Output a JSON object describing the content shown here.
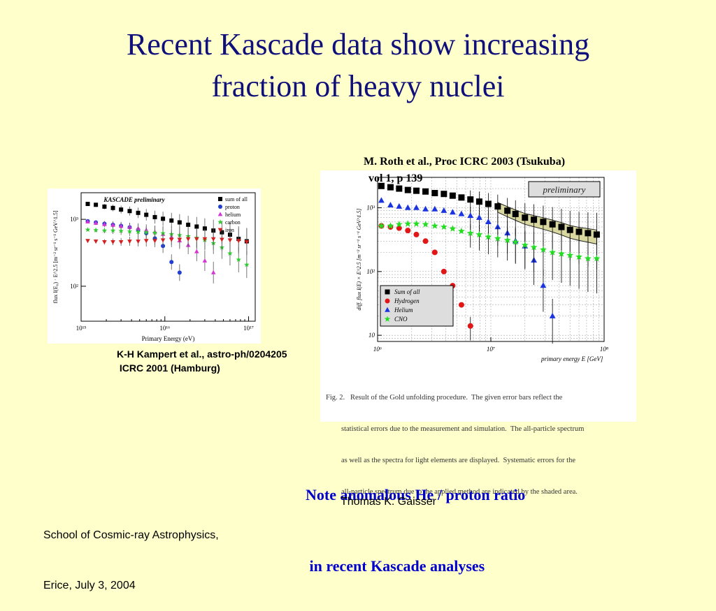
{
  "title_line1": "Recent Kascade data show increasing",
  "title_line2": "fraction of heavy nuclei",
  "left_citation_line1": "K-H Kampert et al., astro-ph/0204205",
  "left_citation_line2": " ICRC 2001 (Hamburg)",
  "right_citation_line1": "M. Roth et al., Proc ICRC 2003 (Tsukuba)",
  "right_citation_line2": "vol 1, p 139",
  "note_line1": "Note anomalous He / proton ratio",
  "note_line2": " in recent Kascade analyses",
  "footer_left_line1": "School of Cosmic-ray Astrophysics,",
  "footer_left_line2": "Erice, July 3, 2004",
  "footer_right": "Thomas K. Gaisser",
  "figure_caption": [
    "Fig. 2.   Result of the Gold unfolding procedure.  The given error bars reflect the",
    "statistical errors due to the measurement and simulation.  The all-particle spectrum",
    "as well as the spectra for light elements are displayed.  Systematic errors for the",
    "all-particle spectrum due to the applied method are indicated by the shaded area."
  ],
  "colors": {
    "title": "#10107a",
    "note": "#0000cc",
    "background": "#ffffcc",
    "all": "#000000",
    "proton": "#1f3fd0",
    "helium": "#d535d5",
    "carbon": "#2fcc2f",
    "iron": "#d42020",
    "hydrogen": "#e21616",
    "heliumR": "#1a35e0",
    "cno": "#22dd22",
    "band": "#d8d8a0"
  },
  "chart_data": [
    {
      "type": "scatter",
      "title": "KASCADE preliminary",
      "xlabel": "Primary Energy (eV)",
      "ylabel": "flux I(E₀) · E^2.5 [m⁻² sr⁻¹ s⁻¹ GeV^1.5]",
      "x_scale": "log",
      "y_scale": "log",
      "xlim": [
        1000000000000000.0,
        1.2e+17
      ],
      "ylim": [
        30,
        2500
      ],
      "xticks": [
        "10¹⁵",
        "10¹⁶",
        "10¹⁷"
      ],
      "yticks": [
        "10²",
        "10³"
      ],
      "legend_position": "top-right",
      "series": [
        {
          "name": "sum of all",
          "marker": "square",
          "x": [
            1200000000000000.0,
            1500000000000000.0,
            1900000000000000.0,
            2400000000000000.0,
            3000000000000000.0,
            3800000000000000.0,
            4800000000000000.0,
            6000000000000000.0,
            7600000000000000.0,
            9500000000000000.0,
            1.2e+16,
            1.5e+16,
            1.9e+16,
            2.4e+16,
            3e+16,
            3.8e+16,
            4.8e+16,
            6e+16,
            7.6e+16,
            9.5e+16
          ],
          "y": [
            1700,
            1650,
            1550,
            1480,
            1400,
            1330,
            1250,
            1170,
            1080,
            1020,
            960,
            900,
            830,
            780,
            730,
            680,
            640,
            590,
            510,
            470
          ]
        },
        {
          "name": "proton",
          "marker": "circle",
          "x": [
            1200000000000000.0,
            1500000000000000.0,
            1900000000000000.0,
            2400000000000000.0,
            3000000000000000.0,
            3800000000000000.0,
            4800000000000000.0,
            6000000000000000.0,
            7600000000000000.0,
            9500000000000000.0,
            1.2e+16,
            1.5e+16
          ],
          "y": [
            940,
            900,
            860,
            830,
            800,
            760,
            700,
            620,
            520,
            400,
            230,
            160
          ]
        },
        {
          "name": "helium",
          "marker": "triangle-up",
          "x": [
            1200000000000000.0,
            1500000000000000.0,
            1900000000000000.0,
            2400000000000000.0,
            3000000000000000.0,
            3800000000000000.0,
            4800000000000000.0,
            6000000000000000.0,
            7600000000000000.0,
            9500000000000000.0,
            1.2e+16,
            1.5e+16,
            1.9e+16,
            2.4e+16,
            3e+16,
            3.8e+16
          ],
          "y": [
            920,
            880,
            840,
            820,
            790,
            760,
            730,
            690,
            650,
            600,
            540,
            480,
            410,
            330,
            240,
            160
          ]
        },
        {
          "name": "carbon",
          "marker": "star",
          "x": [
            1200000000000000.0,
            1500000000000000.0,
            1900000000000000.0,
            2400000000000000.0,
            3000000000000000.0,
            3800000000000000.0,
            4800000000000000.0,
            6000000000000000.0,
            7600000000000000.0,
            9500000000000000.0,
            1.2e+16,
            1.5e+16,
            1.9e+16,
            2.4e+16,
            3e+16,
            3.8e+16,
            4.8e+16,
            6e+16,
            7.6e+16,
            9.5e+16
          ],
          "y": [
            700,
            690,
            680,
            680,
            670,
            660,
            650,
            640,
            630,
            620,
            600,
            580,
            560,
            530,
            490,
            440,
            380,
            310,
            250,
            210
          ]
        },
        {
          "name": "iron",
          "marker": "triangle-down",
          "x": [
            1200000000000000.0,
            1500000000000000.0,
            1900000000000000.0,
            2400000000000000.0,
            3000000000000000.0,
            3800000000000000.0,
            4800000000000000.0,
            6000000000000000.0,
            7600000000000000.0,
            9500000000000000.0,
            1.2e+16,
            1.5e+16,
            1.9e+16,
            2.4e+16,
            3e+16,
            3.8e+16,
            4.8e+16,
            6e+16,
            7.6e+16,
            9.5e+16
          ],
          "y": [
            480,
            470,
            460,
            460,
            460,
            470,
            470,
            480,
            480,
            490,
            500,
            500,
            510,
            510,
            510,
            510,
            500,
            490,
            480,
            460
          ]
        }
      ]
    },
    {
      "type": "scatter",
      "title": "preliminary",
      "xlabel": "primary energy E  [GeV]",
      "ylabel": "diff. flux I(E) × E^2.5  [m⁻² sr⁻¹ s⁻¹ GeV^1.5]",
      "x_scale": "log",
      "y_scale": "log",
      "xlim": [
        1000000.0,
        100000000.0
      ],
      "ylim": [
        8,
        3000
      ],
      "xticks": [
        "10⁶",
        "10⁷",
        "10⁸"
      ],
      "yticks": [
        "10",
        "10²",
        "10³"
      ],
      "legend_position": "bottom-left",
      "band_label": "shaded area = systematic error of all-particle spectrum",
      "series": [
        {
          "name": "Sum of all",
          "marker": "square",
          "x": [
            1080000.0,
            1300000.0,
            1550000.0,
            1850000.0,
            2200000.0,
            2650000.0,
            3200000.0,
            3850000.0,
            4600000.0,
            5500000.0,
            6600000.0,
            7900000.0,
            9500000.0,
            11500000.0,
            14000000.0,
            16500000.0,
            20000000.0,
            24000000.0,
            29000000.0,
            35000000.0,
            42000000.0,
            50000000.0,
            60000000.0,
            72000000.0,
            86000000.0
          ],
          "y": [
            2200,
            2100,
            2000,
            1900,
            1850,
            1800,
            1700,
            1650,
            1550,
            1450,
            1350,
            1250,
            1150,
            1050,
            900,
            800,
            700,
            650,
            600,
            550,
            500,
            450,
            420,
            400,
            380
          ]
        },
        {
          "name": "Hydrogen",
          "marker": "circle",
          "x": [
            1080000.0,
            1300000.0,
            1550000.0,
            1850000.0,
            2200000.0,
            2650000.0,
            3200000.0,
            3850000.0,
            4600000.0,
            5500000.0,
            6600000.0
          ],
          "y": [
            520,
            500,
            480,
            440,
            380,
            300,
            200,
            100,
            60,
            30,
            14
          ]
        },
        {
          "name": "Helium",
          "marker": "triangle-up",
          "x": [
            1080000.0,
            1300000.0,
            1550000.0,
            1850000.0,
            2200000.0,
            2650000.0,
            3200000.0,
            3850000.0,
            4600000.0,
            5500000.0,
            6600000.0,
            7900000.0,
            9500000.0,
            11500000.0,
            14000000.0,
            16500000.0,
            20000000.0,
            24000000.0,
            29000000.0,
            35000000.0
          ],
          "y": [
            1300,
            1100,
            1050,
            1000,
            1000,
            950,
            950,
            900,
            850,
            800,
            750,
            700,
            600,
            500,
            400,
            300,
            250,
            150,
            60,
            20
          ]
        },
        {
          "name": "CNO",
          "marker": "star",
          "x": [
            1080000.0,
            1300000.0,
            1550000.0,
            1850000.0,
            2200000.0,
            2650000.0,
            3200000.0,
            3850000.0,
            4600000.0,
            5500000.0,
            6600000.0,
            7900000.0,
            9500000.0,
            11500000.0,
            14000000.0,
            16500000.0,
            20000000.0,
            24000000.0,
            29000000.0,
            35000000.0,
            42000000.0,
            50000000.0,
            60000000.0,
            72000000.0,
            86000000.0
          ],
          "y": [
            520,
            520,
            550,
            560,
            560,
            550,
            520,
            500,
            470,
            430,
            400,
            380,
            350,
            330,
            310,
            290,
            260,
            240,
            220,
            200,
            190,
            180,
            170,
            160,
            160
          ]
        }
      ]
    }
  ]
}
